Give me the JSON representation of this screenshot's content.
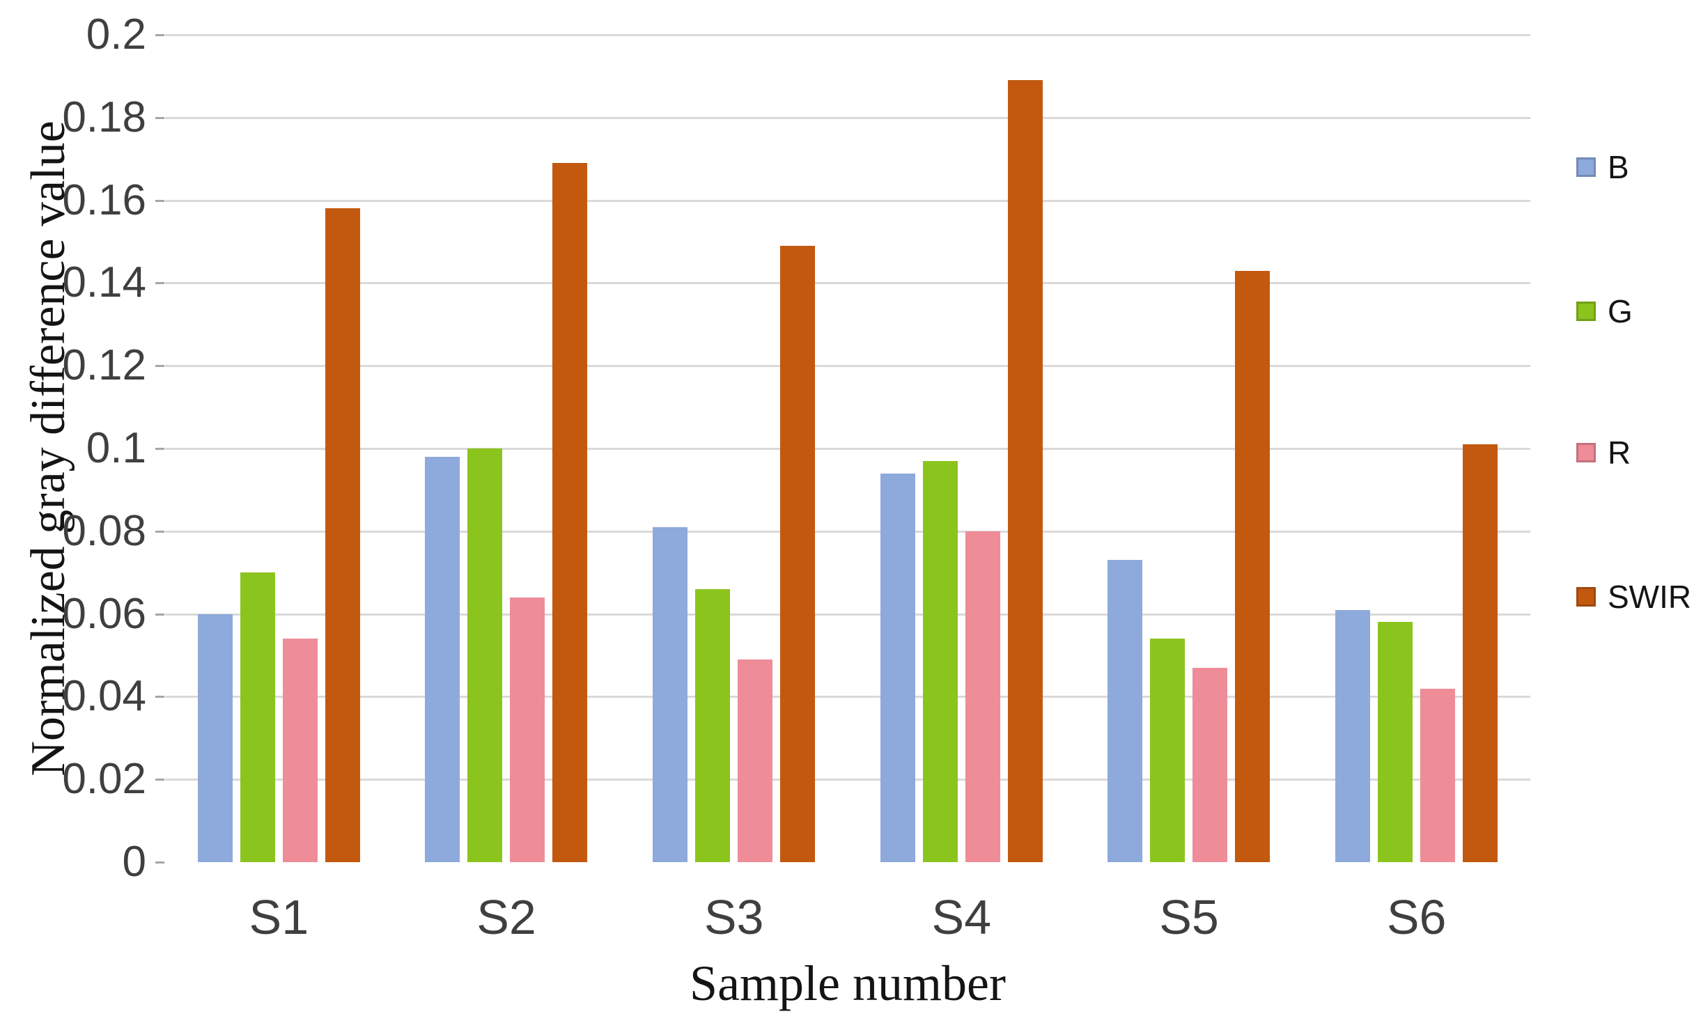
{
  "chart_data": {
    "type": "bar",
    "title": "",
    "xlabel": "Sample number",
    "ylabel": "Normalized gray difference value",
    "categories": [
      "S1",
      "S2",
      "S3",
      "S4",
      "S5",
      "S6"
    ],
    "series": [
      {
        "name": "B",
        "color": "#8EA9DB",
        "values": [
          0.06,
          0.098,
          0.081,
          0.094,
          0.073,
          0.061
        ]
      },
      {
        "name": "G",
        "color": "#8CC41E",
        "values": [
          0.07,
          0.1,
          0.066,
          0.097,
          0.054,
          0.058
        ]
      },
      {
        "name": "R",
        "color": "#EE8C98",
        "values": [
          0.054,
          0.064,
          0.049,
          0.08,
          0.047,
          0.042
        ]
      },
      {
        "name": "SWIR",
        "color": "#C2590F",
        "values": [
          0.158,
          0.169,
          0.149,
          0.189,
          0.143,
          0.101
        ]
      }
    ],
    "ylim": [
      0,
      0.2
    ],
    "ytick_step": 0.02,
    "ytick_labels": [
      "0",
      "0.02",
      "0.04",
      "0.06",
      "0.08",
      "0.1",
      "0.12",
      "0.14",
      "0.16",
      "0.18",
      "0.2"
    ],
    "grid": true,
    "legend_position": "right"
  },
  "colors": {
    "background": "#FFFFFF",
    "gridline": "#D9D9D9",
    "axis_line": "#A6A6A6",
    "tick_text": "#3F3F3F",
    "title_text": "#141414"
  }
}
